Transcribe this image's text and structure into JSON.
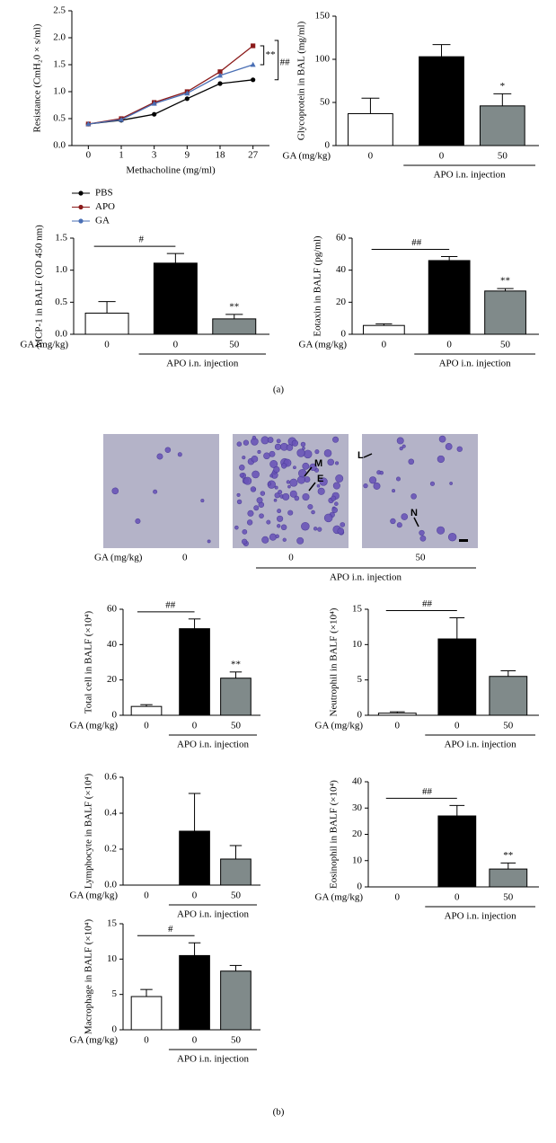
{
  "chart_data": [
    {
      "type": "line",
      "y_label": "Resistance (CmH₂0 × s/ml)",
      "x_label": "Methacholine (mg/ml)",
      "categories": [
        "0",
        "1",
        "3",
        "9",
        "18",
        "27"
      ],
      "series": [
        {
          "name": "PBS",
          "color": "#000000",
          "values": [
            0.4,
            0.47,
            0.58,
            0.87,
            1.15,
            1.22
          ]
        },
        {
          "name": "APO",
          "color": "#8b1a1a",
          "values": [
            0.4,
            0.5,
            0.8,
            1.0,
            1.37,
            1.85
          ]
        },
        {
          "name": "GA",
          "color": "#4a6fb5",
          "values": [
            0.4,
            0.48,
            0.78,
            0.97,
            1.3,
            1.5
          ]
        }
      ],
      "ylim": [
        0,
        2.5
      ],
      "yticks": [
        {
          "value": 0,
          "label": "0.0"
        },
        0.5,
        {
          "value": 1,
          "label": "1.0"
        },
        1.5,
        {
          "value": 2,
          "label": "2.0"
        },
        2.5
      ],
      "annotations": [
        "**",
        "##"
      ],
      "legend": "below"
    },
    {
      "type": "bar",
      "y_label": "Glycoprotein in BAL (mg/ml)",
      "x_label": "GA (mg/kg)",
      "categories": [
        "0",
        "0",
        "50"
      ],
      "group_label": "APO i.n. injection",
      "values": [
        37,
        103,
        46
      ],
      "errors": [
        18,
        14,
        14
      ],
      "colors": [
        "#ffffff",
        "#000000",
        "#808a8a"
      ],
      "ylim": [
        0,
        150
      ],
      "yticks": [
        0,
        50,
        100,
        150
      ],
      "stars": [
        null,
        null,
        "*"
      ]
    },
    {
      "type": "bar",
      "y_label": "MCP-1 in BALF (OD 450 nm)",
      "x_label": "GA (mg/kg)",
      "categories": [
        "0",
        "0",
        "50"
      ],
      "group_label": "APO i.n. injection",
      "values": [
        0.33,
        1.11,
        0.24
      ],
      "errors": [
        0.18,
        0.15,
        0.07
      ],
      "colors": [
        "#ffffff",
        "#000000",
        "#808a8a"
      ],
      "ylim": [
        0,
        1.5
      ],
      "yticks": [
        {
          "value": 0,
          "label": "0.0"
        },
        0.5,
        {
          "value": 1,
          "label": "1.0"
        },
        1.5
      ],
      "stars": [
        null,
        null,
        "**"
      ],
      "bracket": "#"
    },
    {
      "type": "bar",
      "y_label": "Eotaxin in BALF (pg/ml)",
      "x_label": "GA (mg/kg)",
      "categories": [
        "0",
        "0",
        "50"
      ],
      "group_label": "APO i.n. injection",
      "values": [
        5.5,
        46,
        27
      ],
      "errors": [
        1,
        2.5,
        1.5
      ],
      "colors": [
        "#ffffff",
        "#000000",
        "#808a8a"
      ],
      "ylim": [
        0,
        60
      ],
      "yticks": [
        0,
        20,
        40,
        60
      ],
      "stars": [
        null,
        null,
        "**"
      ],
      "bracket": "##"
    },
    {
      "type": "bar",
      "y_label": "Total cell in BALF (×10⁴)",
      "x_label": "GA (mg/kg)",
      "categories": [
        "0",
        "0",
        "50"
      ],
      "group_label": "APO i.n. injection",
      "values": [
        5,
        49,
        21
      ],
      "errors": [
        1,
        5.5,
        3.5
      ],
      "colors": [
        "#ffffff",
        "#000000",
        "#808a8a"
      ],
      "ylim": [
        0,
        60
      ],
      "yticks": [
        0,
        20,
        40,
        60
      ],
      "stars": [
        null,
        null,
        "**"
      ],
      "bracket": "##"
    },
    {
      "type": "bar",
      "y_label": "Neutrophil in BALF (×10⁴)",
      "x_label": "GA (mg/kg)",
      "categories": [
        "0",
        "0",
        "50"
      ],
      "group_label": "APO i.n. injection",
      "values": [
        0.3,
        10.8,
        5.5
      ],
      "errors": [
        0.2,
        3,
        0.8
      ],
      "colors": [
        "#ffffff",
        "#000000",
        "#808a8a"
      ],
      "ylim": [
        0,
        15
      ],
      "yticks": [
        0,
        5,
        10,
        15
      ],
      "bracket": "##"
    },
    {
      "type": "bar",
      "y_label": "Lymphocyte in BALF (×10⁴)",
      "x_label": "GA (mg/kg)",
      "categories": [
        "0",
        "0",
        "50"
      ],
      "group_label": "APO i.n. injection",
      "values": [
        0,
        0.3,
        0.145
      ],
      "errors": [
        0,
        0.21,
        0.075
      ],
      "colors": [
        "#ffffff",
        "#000000",
        "#808a8a"
      ],
      "ylim": [
        0,
        0.6
      ],
      "yticks": [
        {
          "value": 0,
          "label": "0.0"
        },
        0.2,
        0.4,
        0.6
      ]
    },
    {
      "type": "bar",
      "y_label": "Eosinophil in BALF (×10⁴)",
      "x_label": "GA (mg/kg)",
      "categories": [
        "0",
        "0",
        "50"
      ],
      "group_label": "APO i.n. injection",
      "values": [
        0,
        27,
        6.8
      ],
      "errors": [
        0,
        4,
        2.3
      ],
      "colors": [
        "#ffffff",
        "#000000",
        "#808a8a"
      ],
      "ylim": [
        0,
        40
      ],
      "yticks": [
        0,
        10,
        20,
        30,
        40
      ],
      "stars": [
        null,
        null,
        "**"
      ],
      "bracket": "##"
    },
    {
      "type": "bar",
      "y_label": "Macrophage in BALF (×10⁴)",
      "x_label": "GA (mg/kg)",
      "categories": [
        "0",
        "0",
        "50"
      ],
      "group_label": "APO i.n. injection",
      "values": [
        4.7,
        10.5,
        8.3
      ],
      "errors": [
        1,
        1.8,
        0.8
      ],
      "colors": [
        "#ffffff",
        "#000000",
        "#808a8a"
      ],
      "ylim": [
        0,
        15
      ],
      "yticks": [
        0,
        5,
        10,
        15
      ],
      "bracket": "#"
    }
  ],
  "micrographs": {
    "labels": [
      "M",
      "E",
      "L",
      "N"
    ],
    "x_label": "GA (mg/kg)",
    "categories": [
      "0",
      "0",
      "50"
    ],
    "group_label": "APO i.n. injection"
  },
  "panel_labels": [
    "(a)",
    "(b)"
  ]
}
